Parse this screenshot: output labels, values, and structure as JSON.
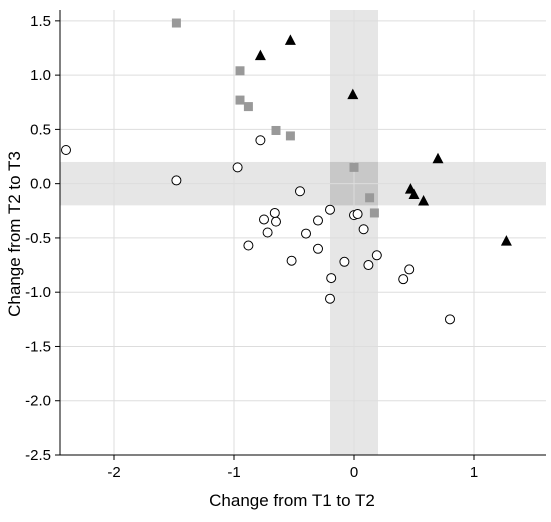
{
  "chart_data": {
    "type": "scatter",
    "xlabel": "Change from T1 to T2",
    "ylabel": "Change from T2 to T3",
    "xlim": [
      -2.45,
      1.6
    ],
    "ylim": [
      -2.5,
      1.6
    ],
    "x_ticks": [
      -2,
      -1,
      0,
      1
    ],
    "x_tick_labels": [
      "-2",
      "-1",
      "0",
      "1"
    ],
    "y_ticks": [
      1.5,
      1.0,
      0.5,
      0.0,
      -0.5,
      -1.0,
      -1.5,
      -2.0,
      -2.5
    ],
    "y_tick_labels": [
      "1.5",
      "1.0",
      "0.5",
      "0.0",
      "-0.5",
      "-1.0",
      "-1.5",
      "-2.0",
      "-2.5"
    ],
    "grid": true,
    "shaded_bands": {
      "vertical": {
        "x": [
          -0.2,
          0.2
        ],
        "color": "#e6e6e6"
      },
      "horizontal": {
        "y": [
          -0.2,
          0.2
        ],
        "color": "#e6e6e6"
      },
      "overlap_color": "#c8c8c8"
    },
    "colors": {
      "square": "#999999",
      "triangle": "#000000",
      "circle_stroke": "#000000",
      "grid": "#dddddd",
      "axis": "#000000"
    },
    "series": [
      {
        "marker": "square",
        "points": [
          [
            -1.48,
            1.48
          ],
          [
            -0.95,
            1.04
          ],
          [
            -0.95,
            0.77
          ],
          [
            -0.88,
            0.71
          ],
          [
            -0.65,
            0.49
          ],
          [
            -0.53,
            0.44
          ],
          [
            0.0,
            0.15
          ],
          [
            0.13,
            -0.13
          ],
          [
            0.17,
            -0.27
          ]
        ]
      },
      {
        "marker": "triangle",
        "points": [
          [
            -0.78,
            1.18
          ],
          [
            -0.53,
            1.32
          ],
          [
            -0.01,
            0.82
          ],
          [
            0.7,
            0.23
          ],
          [
            0.47,
            -0.05
          ],
          [
            0.5,
            -0.1
          ],
          [
            0.58,
            -0.16
          ],
          [
            1.27,
            -0.53
          ]
        ]
      },
      {
        "marker": "circle",
        "points": [
          [
            -2.4,
            0.31
          ],
          [
            -1.48,
            0.03
          ],
          [
            -0.97,
            0.15
          ],
          [
            -0.78,
            0.4
          ],
          [
            -0.45,
            -0.07
          ],
          [
            -0.2,
            -0.24
          ],
          [
            0.0,
            -0.29
          ],
          [
            0.03,
            -0.28
          ],
          [
            0.08,
            -0.42
          ],
          [
            -0.75,
            -0.33
          ],
          [
            -0.65,
            -0.35
          ],
          [
            -0.66,
            -0.27
          ],
          [
            -0.72,
            -0.45
          ],
          [
            -0.88,
            -0.57
          ],
          [
            -0.3,
            -0.34
          ],
          [
            -0.4,
            -0.46
          ],
          [
            -0.3,
            -0.6
          ],
          [
            -0.52,
            -0.71
          ],
          [
            -0.08,
            -0.72
          ],
          [
            0.12,
            -0.75
          ],
          [
            0.19,
            -0.66
          ],
          [
            -0.19,
            -0.87
          ],
          [
            -0.2,
            -1.06
          ],
          [
            0.46,
            -0.79
          ],
          [
            0.41,
            -0.88
          ],
          [
            0.8,
            -1.25
          ]
        ]
      }
    ]
  }
}
